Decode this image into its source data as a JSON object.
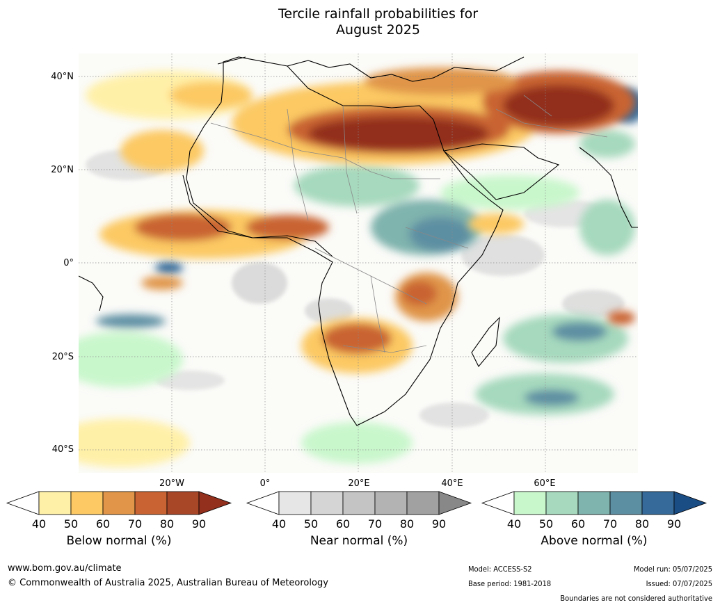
{
  "title_line1": "Tercile rainfall probabilities for",
  "title_line2": "August 2025",
  "lat_labels": [
    "40°N",
    "20°N",
    "0°",
    "20°S",
    "40°S"
  ],
  "lon_labels": [
    "20°W",
    "0°",
    "20°E",
    "40°E",
    "60°E"
  ],
  "legends": [
    {
      "title": "Below normal (%)",
      "ticks": [
        "40",
        "50",
        "60",
        "70",
        "80",
        "90"
      ],
      "colors": [
        "#fff0a8",
        "#fcc964",
        "#e09548",
        "#c96333",
        "#a84628",
        "#922f1d"
      ]
    },
    {
      "title": "Near normal (%)",
      "ticks": [
        "40",
        "50",
        "60",
        "70",
        "80",
        "90"
      ],
      "colors": [
        "#e6e6e6",
        "#d5d5d5",
        "#c4c4c4",
        "#b3b3b3",
        "#a1a1a1",
        "#888888"
      ]
    },
    {
      "title": "Above normal (%)",
      "ticks": [
        "40",
        "50",
        "60",
        "70",
        "80",
        "90"
      ],
      "colors": [
        "#c9f7cc",
        "#a6d9bd",
        "#7fb3ad",
        "#5d8fa3",
        "#356a9a",
        "#1b4d85"
      ]
    }
  ],
  "footer": {
    "website": "www.bom.gov.au/climate",
    "copyright": "© Commonwealth of Australia 2025, Australian Bureau of Meteorology",
    "model": "Model: ACCESS-S2",
    "base_period": "Base period: 1981-2018",
    "model_run": "Model run: 05/07/2025",
    "issued": "Issued: 07/07/2025",
    "disclaimer": "Boundaries are not considered authoritative"
  }
}
